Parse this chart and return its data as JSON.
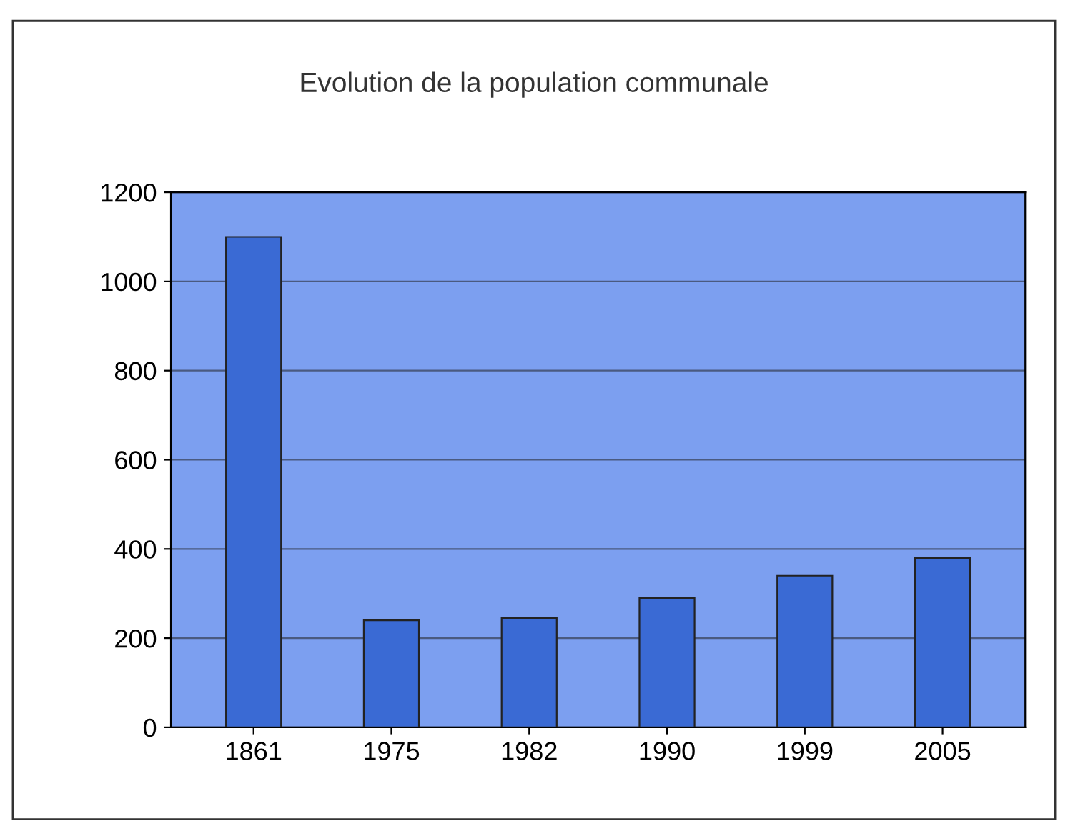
{
  "chart_data": {
    "type": "bar",
    "title": "Evolution de la population communale",
    "categories": [
      "1861",
      "1975",
      "1982",
      "1990",
      "1999",
      "2005"
    ],
    "values": [
      1100,
      240,
      245,
      290,
      340,
      380
    ],
    "color": "#3a6ad4",
    "ylim": [
      0,
      1200
    ],
    "yticks": [
      0,
      200,
      400,
      600,
      800,
      1000,
      1200
    ],
    "grid": "y"
  }
}
